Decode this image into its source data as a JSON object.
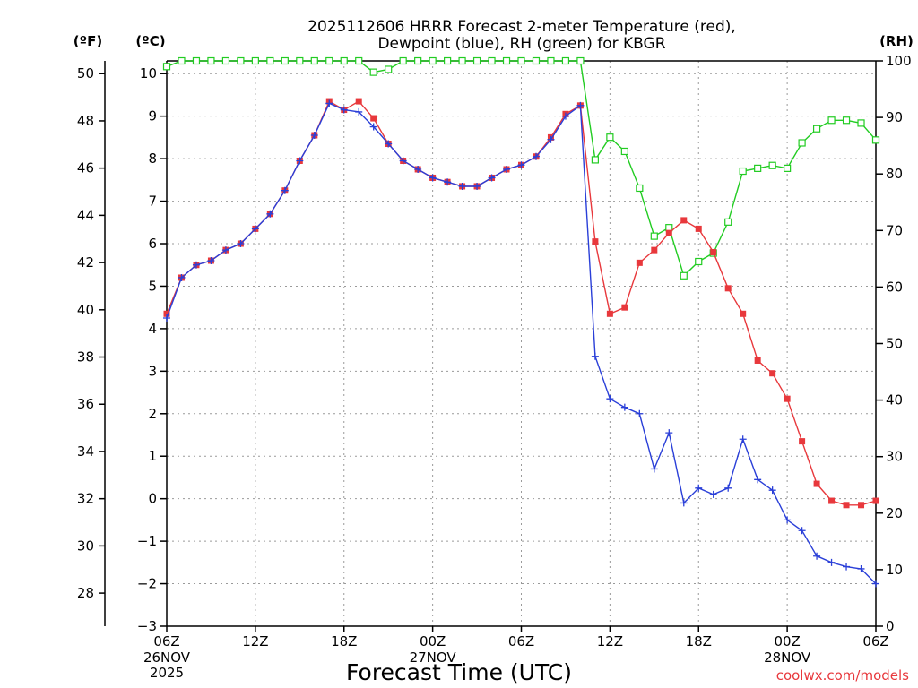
{
  "chart_data": {
    "type": "line",
    "title_lines": [
      "2025112606 HRRR Forecast 2-meter Temperature (red),",
      "Dewpoint (blue), RH (green) for KBGR"
    ],
    "unit_labels": {
      "fahrenheit": "(ºF)",
      "celsius": "(ºC)",
      "rh": "(RH)"
    },
    "xlabel": "Forecast Time (UTC)",
    "watermark": "coolwx.com/models",
    "colors": {
      "temperature": "#e8383c",
      "dewpoint": "#2a3fd8",
      "rh": "#22cc22",
      "grid": "#9a9a9a"
    },
    "x_range_hours": [
      0,
      48
    ],
    "x_ticks": [
      {
        "hour": 0,
        "label": "06Z",
        "sub": [
          "26NOV",
          "2025"
        ]
      },
      {
        "hour": 6,
        "label": "12Z",
        "sub": []
      },
      {
        "hour": 12,
        "label": "18Z",
        "sub": []
      },
      {
        "hour": 18,
        "label": "00Z",
        "sub": [
          "27NOV"
        ]
      },
      {
        "hour": 24,
        "label": "06Z",
        "sub": []
      },
      {
        "hour": 30,
        "label": "12Z",
        "sub": []
      },
      {
        "hour": 36,
        "label": "18Z",
        "sub": []
      },
      {
        "hour": 42,
        "label": "00Z",
        "sub": [
          "28NOV"
        ]
      },
      {
        "hour": 48,
        "label": "06Z",
        "sub": []
      }
    ],
    "y_celsius": {
      "range": [
        -3,
        10.3
      ],
      "ticks": [
        -3,
        -2,
        -1,
        0,
        1,
        2,
        3,
        4,
        5,
        6,
        7,
        8,
        9,
        10
      ],
      "tick_labels": [
        "−3",
        "−2",
        "−1",
        "0",
        "1",
        "2",
        "3",
        "4",
        "5",
        "6",
        "7",
        "8",
        "9",
        "10"
      ]
    },
    "y_fahrenheit": {
      "ticks": [
        28,
        30,
        32,
        34,
        36,
        38,
        40,
        42,
        44,
        46,
        48,
        50
      ],
      "tick_labels": [
        "28",
        "30",
        "32",
        "34",
        "36",
        "38",
        "40",
        "42",
        "44",
        "46",
        "48",
        "50"
      ]
    },
    "y_rh": {
      "range": [
        0,
        100
      ],
      "ticks": [
        0,
        10,
        20,
        30,
        40,
        50,
        60,
        70,
        80,
        90,
        100
      ],
      "tick_labels": [
        "0",
        "10",
        "20",
        "30",
        "40",
        "50",
        "60",
        "70",
        "80",
        "90",
        "100"
      ]
    },
    "hours": [
      0,
      1,
      2,
      3,
      4,
      5,
      6,
      7,
      8,
      9,
      10,
      11,
      12,
      13,
      14,
      15,
      16,
      17,
      18,
      19,
      20,
      21,
      22,
      23,
      24,
      25,
      26,
      27,
      28,
      29,
      30,
      31,
      32,
      33,
      34,
      35,
      36,
      37,
      38,
      39,
      40,
      41,
      42,
      43,
      44,
      45,
      46,
      47,
      48
    ],
    "series": [
      {
        "name": "Temperature (°C)",
        "key": "temperature",
        "marker": "filled-square",
        "values": [
          4.35,
          5.2,
          5.5,
          5.6,
          5.85,
          6.0,
          6.35,
          6.7,
          7.25,
          7.95,
          8.55,
          9.35,
          9.15,
          9.35,
          8.95,
          8.35,
          7.95,
          7.75,
          7.55,
          7.45,
          7.35,
          7.35,
          7.55,
          7.75,
          7.85,
          8.05,
          8.5,
          9.05,
          9.25,
          6.05,
          4.35,
          4.5,
          5.55,
          5.85,
          6.25,
          6.55,
          6.35,
          5.8,
          4.95,
          4.35,
          3.25,
          2.95,
          2.35,
          1.35,
          0.35,
          -0.05,
          -0.15,
          -0.15,
          -0.05
        ]
      },
      {
        "name": "Dewpoint (°C)",
        "key": "dewpoint",
        "marker": "plus",
        "values": [
          4.25,
          5.2,
          5.5,
          5.6,
          5.85,
          6.0,
          6.35,
          6.7,
          7.25,
          7.95,
          8.55,
          9.3,
          9.15,
          9.1,
          8.75,
          8.35,
          7.95,
          7.75,
          7.55,
          7.45,
          7.35,
          7.35,
          7.55,
          7.75,
          7.85,
          8.05,
          8.45,
          9.0,
          9.25,
          3.35,
          2.35,
          2.15,
          2.0,
          0.7,
          1.55,
          -0.1,
          0.25,
          0.1,
          0.25,
          1.4,
          0.45,
          0.2,
          -0.5,
          -0.75,
          -1.35,
          -1.5,
          -1.6,
          -1.65,
          -2.0
        ]
      },
      {
        "name": "RH (%)",
        "key": "rh",
        "marker": "open-square",
        "values": [
          99,
          100,
          100,
          100,
          100,
          100,
          100,
          100,
          100,
          100,
          100,
          100,
          100,
          100,
          98,
          98.5,
          100,
          100,
          100,
          100,
          100,
          100,
          100,
          100,
          100,
          100,
          100,
          100,
          100,
          82.5,
          86.5,
          84,
          77.5,
          69,
          70.5,
          62,
          64.5,
          66,
          71.5,
          80.5,
          81,
          81.5,
          81,
          85.5,
          88,
          89.5,
          89.5,
          89,
          86
        ]
      }
    ]
  }
}
